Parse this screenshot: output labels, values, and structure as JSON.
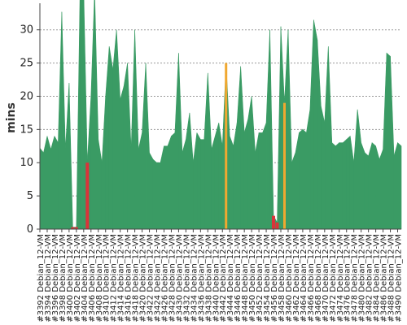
{
  "chart_data": {
    "type": "area",
    "title": "",
    "xlabel": "",
    "ylabel": "mins",
    "ylim": [
      0,
      34
    ],
    "yticks": [
      0,
      5,
      10,
      15,
      20,
      25,
      30
    ],
    "grid": true,
    "x": [
      3392,
      3393,
      3394,
      3395,
      3396,
      3397,
      3398,
      3399,
      3400,
      3401,
      3402,
      3403,
      3404,
      3405,
      3406,
      3407,
      3408,
      3409,
      3410,
      3411,
      3412,
      3413,
      3414,
      3415,
      3416,
      3417,
      3418,
      3419,
      3420,
      3421,
      3422,
      3423,
      3424,
      3425,
      3426,
      3427,
      3428,
      3429,
      3430,
      3431,
      3432,
      3433,
      3434,
      3435,
      3436,
      3437,
      3438,
      3439,
      3440,
      3441,
      3442,
      3443,
      3444,
      3445,
      3446,
      3447,
      3448,
      3449,
      3450,
      3451,
      3452,
      3453,
      3454,
      3455,
      3456,
      3457,
      3458,
      3459,
      3460,
      3461,
      3462,
      3463,
      3464,
      3465,
      3466,
      3467,
      3468,
      3469,
      3470,
      3471,
      3472,
      3473,
      3474,
      3475,
      3476,
      3477,
      3478,
      3479,
      3480,
      3481,
      3482,
      3483,
      3484,
      3485,
      3486,
      3487,
      3488,
      3489,
      3490,
      3491
    ],
    "values": [
      12.2,
      11.5,
      14.0,
      12.0,
      14.0,
      13.0,
      32.7,
      12.0,
      22.0,
      0.3,
      0.3,
      36.0,
      36.0,
      10.0,
      20.0,
      36.0,
      13.5,
      10.0,
      20.0,
      27.5,
      24.0,
      30.0,
      19.5,
      21.5,
      25.0,
      12.0,
      30.0,
      12.0,
      14.5,
      25.0,
      11.5,
      10.5,
      10.0,
      10.0,
      12.5,
      12.5,
      14.0,
      14.5,
      26.5,
      11.5,
      13.5,
      17.5,
      10.0,
      14.5,
      13.5,
      13.5,
      23.5,
      12.0,
      14.0,
      16.0,
      12.5,
      25.0,
      14.0,
      12.5,
      16.0,
      24.5,
      14.5,
      16.5,
      20.0,
      11.5,
      14.5,
      14.5,
      16.0,
      30.0,
      2.0,
      1.0,
      30.5,
      19.0,
      30.0,
      10.0,
      11.5,
      14.5,
      15.0,
      14.5,
      18.0,
      31.5,
      28.5,
      18.5,
      16.0,
      27.5,
      13.0,
      12.5,
      13.0,
      13.0,
      13.5,
      14.0,
      10.0,
      18.0,
      13.0,
      11.5,
      11.0,
      13.0,
      12.5,
      10.5,
      12.0,
      26.5,
      26.0,
      11.0,
      13.0,
      12.5
    ],
    "status": [
      "ok",
      "ok",
      "ok",
      "ok",
      "ok",
      "ok",
      "ok",
      "ok",
      "ok",
      "failed",
      "failed",
      "ok",
      "ok",
      "failed",
      "ok",
      "ok",
      "ok",
      "ok",
      "ok",
      "ok",
      "ok",
      "ok",
      "ok",
      "ok",
      "ok",
      "ok",
      "ok",
      "ok",
      "ok",
      "ok",
      "ok",
      "ok",
      "ok",
      "ok",
      "ok",
      "ok",
      "ok",
      "ok",
      "ok",
      "ok",
      "ok",
      "ok",
      "ok",
      "ok",
      "ok",
      "ok",
      "ok",
      "ok",
      "ok",
      "ok",
      "ok",
      "unstable",
      "ok",
      "ok",
      "ok",
      "ok",
      "ok",
      "ok",
      "ok",
      "ok",
      "ok",
      "ok",
      "ok",
      "ok",
      "failed",
      "failed",
      "ok",
      "unstable",
      "ok",
      "ok",
      "ok",
      "ok",
      "ok",
      "ok",
      "ok",
      "ok",
      "ok",
      "ok",
      "ok",
      "ok",
      "ok",
      "ok",
      "ok",
      "ok",
      "ok",
      "ok",
      "ok",
      "ok",
      "ok",
      "ok",
      "ok",
      "ok",
      "ok",
      "ok",
      "ok",
      "ok",
      "ok",
      "ok",
      "ok",
      "ok"
    ],
    "colors": {
      "ok": "#3a9b64",
      "failed": "#d9343a",
      "unstable": "#f0a830",
      "grid": "#999999",
      "axis": "#444444"
    },
    "label_prefix": "#",
    "label_suffix": " Debian_12-VM",
    "label_every": 2
  }
}
